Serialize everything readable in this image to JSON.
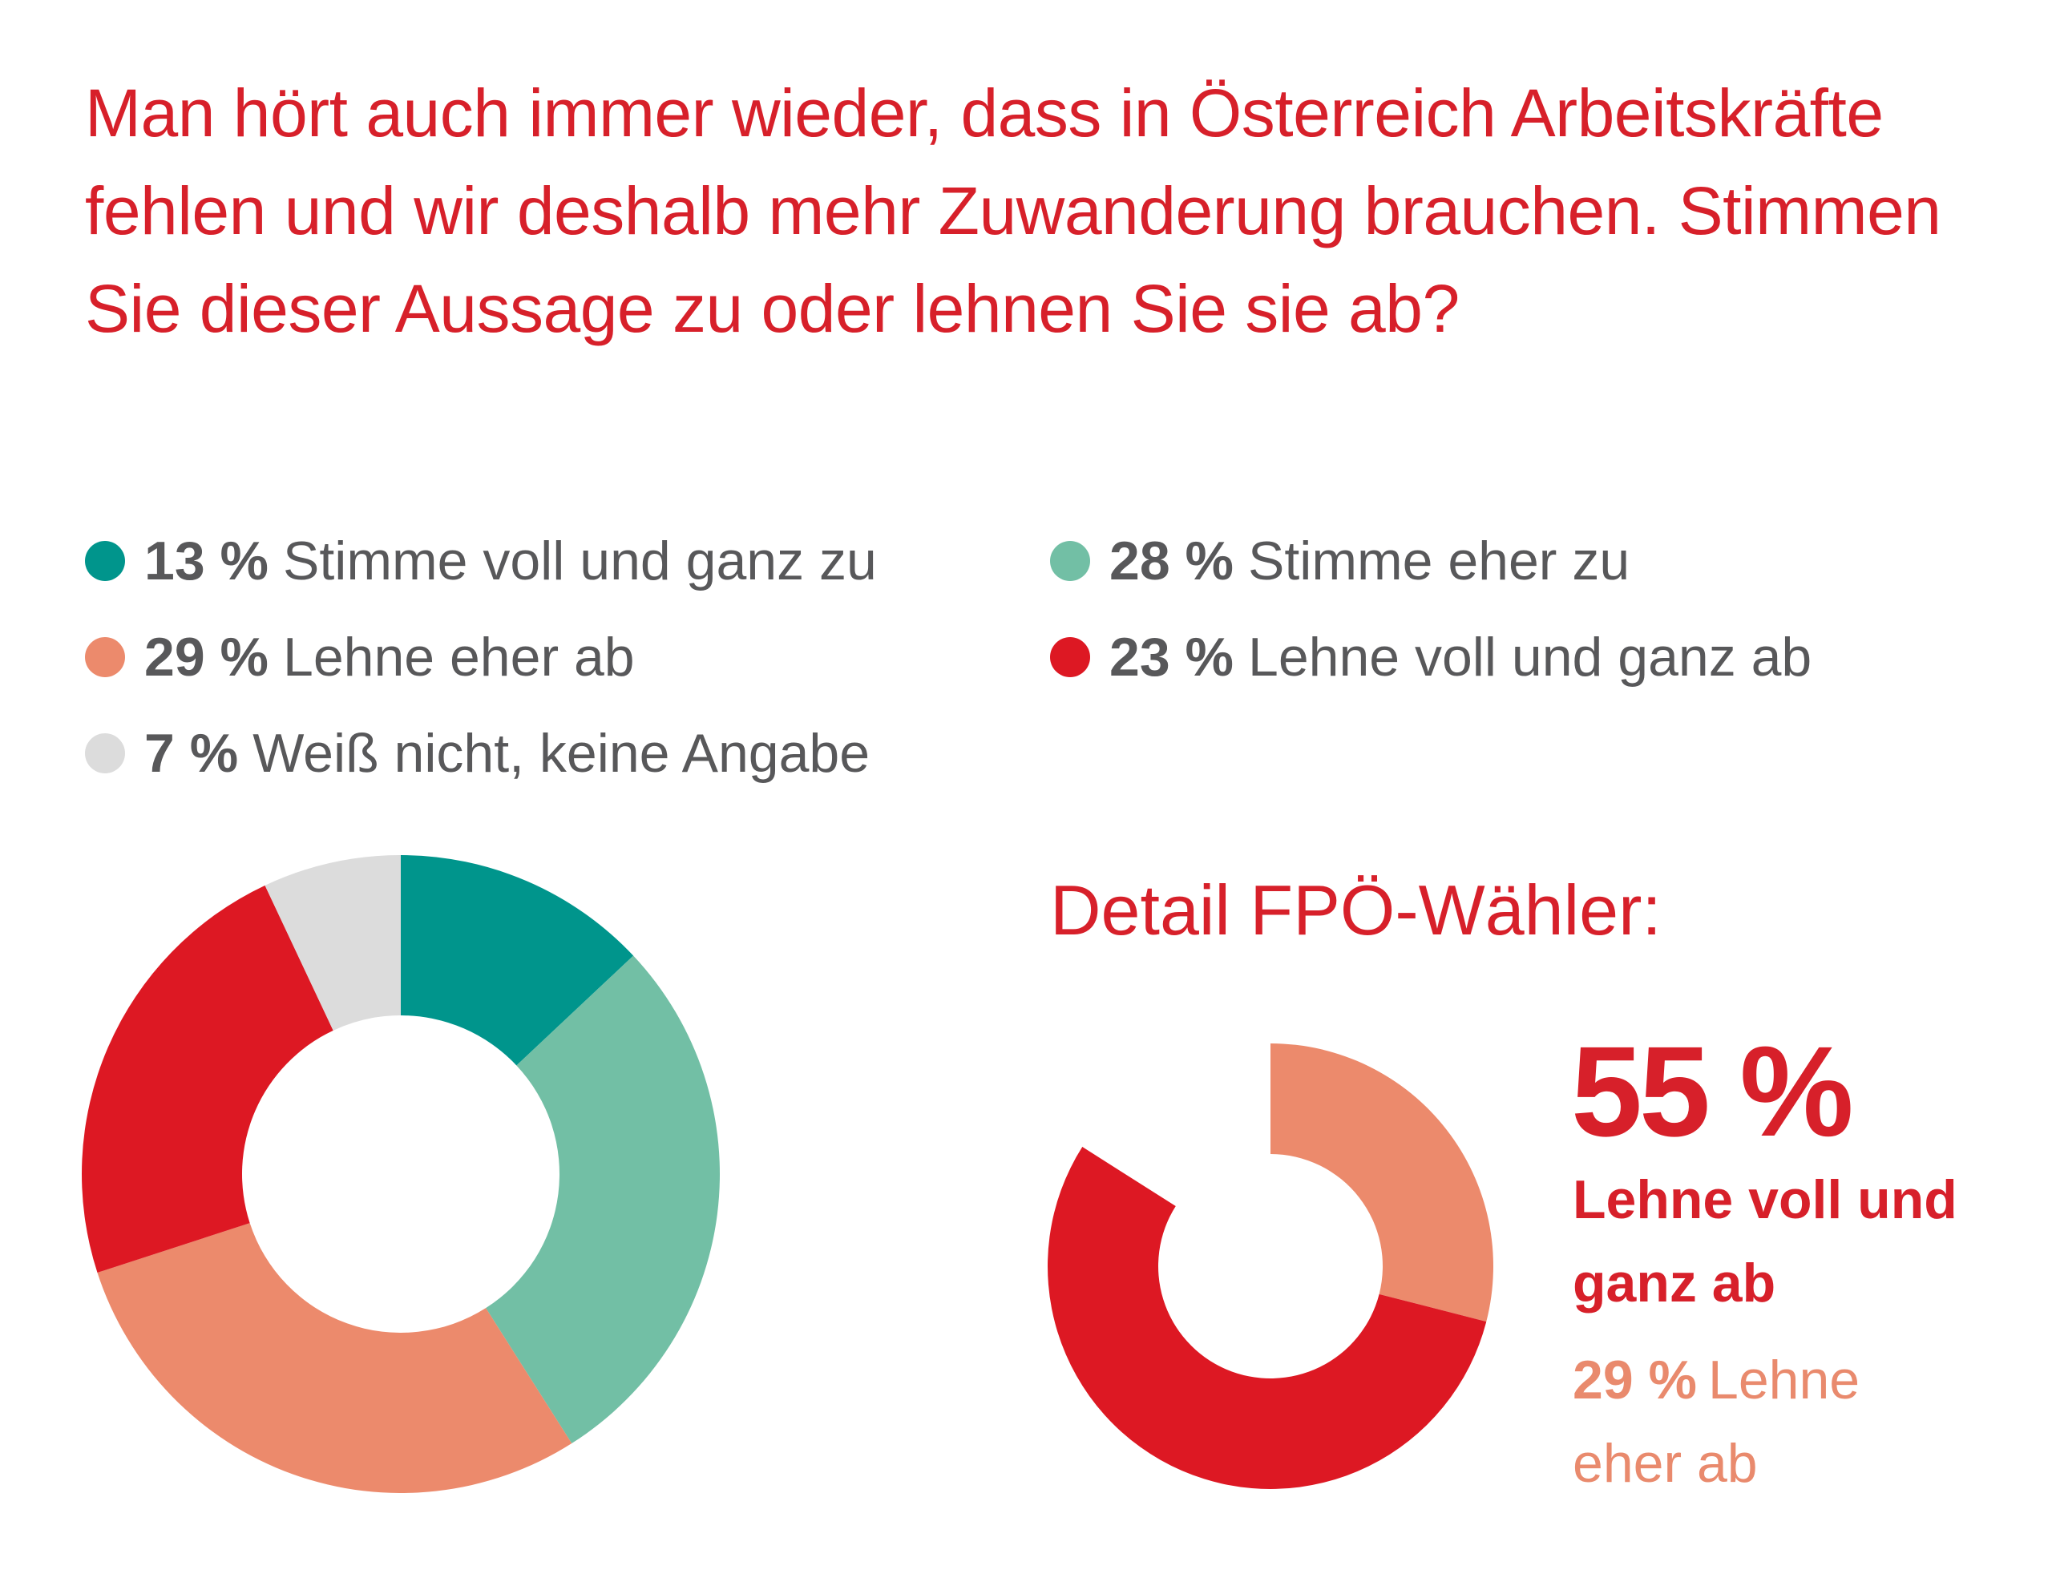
{
  "title": "Man hört auch immer wieder, dass in Österreich Arbeitskräfte fehlen und wir deshalb mehr Zuwanderung brauchen. Stimmen Sie dieser Aussage zu oder lehnen Sie sie ab?",
  "chart_data": [
    {
      "type": "pie",
      "variant": "donut",
      "categories": [
        "Stimme voll und ganz zu",
        "Stimme eher zu",
        "Lehne eher ab",
        "Lehne voll und ganz ab",
        "Weiß nicht, keine Angabe"
      ],
      "values": [
        13,
        28,
        29,
        23,
        7
      ],
      "value_labels": [
        "13 %",
        "28 %",
        "29 %",
        "23 %",
        "7 %"
      ],
      "colors": [
        "#00958c",
        "#72bfa5",
        "#ec8a6c",
        "#dd1823",
        "#dcdcdc"
      ],
      "legend_position": "top"
    },
    {
      "type": "pie",
      "variant": "donut-partial",
      "title": "Detail FPÖ-Wähler:",
      "categories": [
        "Lehne eher ab",
        "Lehne voll und ganz ab"
      ],
      "values": [
        29,
        55
      ],
      "value_labels": [
        "29 %",
        "55 %"
      ],
      "colors": [
        "#ec8a6c",
        "#dd1823"
      ],
      "callout": {
        "highlight_value": "55 %",
        "highlight_label": "Lehne voll und ganz ab",
        "secondary_value": "29 %",
        "secondary_label": "Lehne eher ab"
      }
    }
  ]
}
